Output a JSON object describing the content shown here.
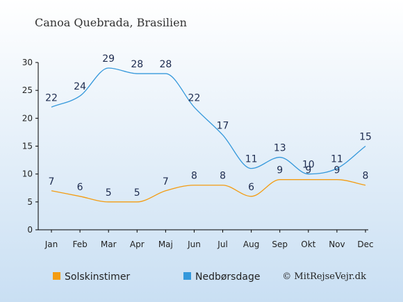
{
  "chart_data": {
    "type": "line",
    "title": "Canoa Quebrada, Brasilien",
    "categories": [
      "Jan",
      "Feb",
      "Mar",
      "Apr",
      "Maj",
      "Jun",
      "Jul",
      "Aug",
      "Sep",
      "Okt",
      "Nov",
      "Dec"
    ],
    "ylim": [
      0,
      30
    ],
    "yticks": [
      0,
      5,
      10,
      15,
      20,
      25,
      30
    ],
    "grid": false,
    "legend_position": "bottom",
    "series": [
      {
        "name": "Solskinstimer",
        "color": "#f39c12",
        "values": [
          7,
          6,
          5,
          5,
          7,
          8,
          8,
          6,
          9,
          9,
          9,
          8
        ]
      },
      {
        "name": "Nedbørsdage",
        "color": "#3498db",
        "values": [
          22,
          24,
          29,
          28,
          28,
          22,
          17,
          11,
          13,
          10,
          11,
          15
        ]
      }
    ]
  },
  "credit": "© MitRejseVejr.dk",
  "colors": {
    "background_top": "#ffffff",
    "background_bottom": "#c9dff3",
    "axis": "#000000",
    "label_text": "#1d2b4f"
  }
}
